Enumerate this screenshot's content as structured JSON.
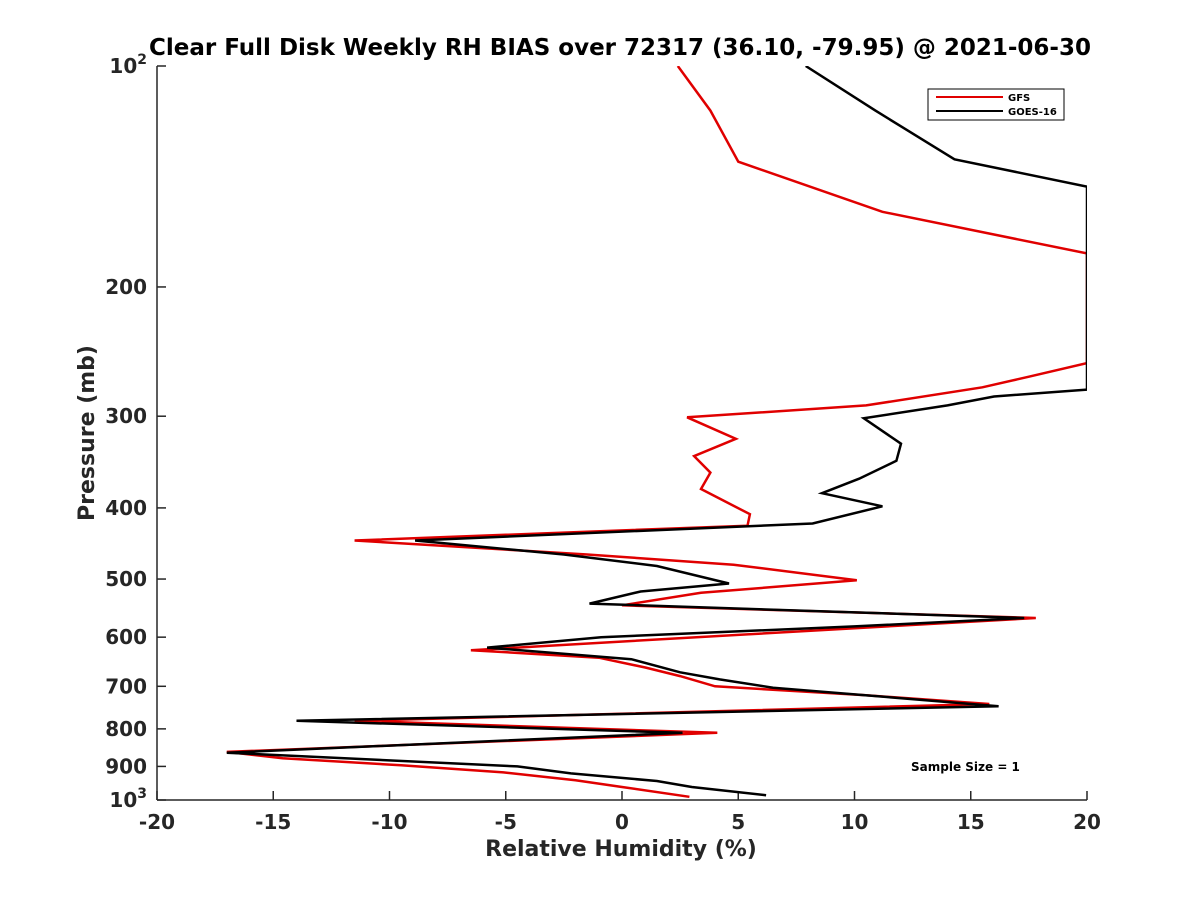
{
  "chart_data": {
    "type": "line",
    "title": "Clear Full Disk Weekly RH BIAS over 72317 (36.10, -79.95) @ 2021-06-30",
    "xlabel": "Relative Humidity (%)",
    "ylabel": "Pressure (mb)",
    "xlim": [
      -20,
      20
    ],
    "ylim": [
      100,
      1000
    ],
    "yscale": "log",
    "y_reversed": true,
    "xticks": [
      "-20",
      "-15",
      "-10",
      "-5",
      "0",
      "5",
      "10",
      "15",
      "20"
    ],
    "yticks": [
      {
        "value": 100,
        "base": "10",
        "exp": "2"
      },
      {
        "value": 200,
        "label": "200"
      },
      {
        "value": 300,
        "label": "300"
      },
      {
        "value": 400,
        "label": "400"
      },
      {
        "value": 500,
        "label": "500"
      },
      {
        "value": 600,
        "label": "600"
      },
      {
        "value": 700,
        "label": "700"
      },
      {
        "value": 800,
        "label": "800"
      },
      {
        "value": 900,
        "label": "900"
      },
      {
        "value": 1000,
        "base": "10",
        "exp": "3"
      }
    ],
    "legend_position": "top-right",
    "grid": false,
    "annotation": "Sample Size = 1",
    "series": [
      {
        "name": "GFS",
        "color": "#e00000",
        "points": [
          [
            2.4,
            100
          ],
          [
            3.8,
            115
          ],
          [
            5.0,
            135
          ],
          [
            11.2,
            158
          ],
          [
            20.0,
            180
          ],
          [
            20.0,
            254
          ],
          [
            17.5,
            265
          ],
          [
            15.5,
            274
          ],
          [
            10.5,
            290
          ],
          [
            2.8,
            301
          ],
          [
            4.9,
            322
          ],
          [
            3.1,
            340
          ],
          [
            3.8,
            358
          ],
          [
            3.4,
            377
          ],
          [
            5.5,
            408
          ],
          [
            5.4,
            423
          ],
          [
            -11.5,
            443
          ],
          [
            -1.5,
            463
          ],
          [
            4.8,
            478
          ],
          [
            10.1,
            502
          ],
          [
            3.4,
            522
          ],
          [
            0.0,
            543
          ],
          [
            17.8,
            565
          ],
          [
            8.5,
            587
          ],
          [
            -6.5,
            625
          ],
          [
            -1.0,
            640
          ],
          [
            1.0,
            660
          ],
          [
            2.5,
            678
          ],
          [
            4.0,
            700
          ],
          [
            10.5,
            720
          ],
          [
            15.8,
            740
          ],
          [
            -11.5,
            780
          ],
          [
            4.1,
            810
          ],
          [
            -17.0,
            860
          ],
          [
            -14.6,
            877
          ],
          [
            -9.5,
            897
          ],
          [
            -5.1,
            917
          ],
          [
            -2.0,
            940
          ],
          [
            0.0,
            960
          ],
          [
            2.9,
            990
          ]
        ]
      },
      {
        "name": "GOES-16",
        "color": "#000000",
        "points": [
          [
            7.9,
            100
          ],
          [
            10.9,
            115
          ],
          [
            14.3,
            134
          ],
          [
            20.0,
            146
          ],
          [
            20.0,
            276
          ],
          [
            16.0,
            282
          ],
          [
            14.0,
            290
          ],
          [
            10.4,
            302
          ],
          [
            12.0,
            327
          ],
          [
            11.8,
            345
          ],
          [
            10.2,
            365
          ],
          [
            8.6,
            382
          ],
          [
            11.2,
            398
          ],
          [
            8.2,
            420
          ],
          [
            -8.9,
            443
          ],
          [
            -2.5,
            463
          ],
          [
            1.5,
            480
          ],
          [
            4.6,
            507
          ],
          [
            0.8,
            520
          ],
          [
            -1.4,
            540
          ],
          [
            17.3,
            565
          ],
          [
            10.0,
            580
          ],
          [
            -0.9,
            600
          ],
          [
            -5.8,
            620
          ],
          [
            0.4,
            643
          ],
          [
            2.5,
            670
          ],
          [
            4.2,
            685
          ],
          [
            6.5,
            703
          ],
          [
            16.2,
            745
          ],
          [
            -14.0,
            780
          ],
          [
            2.6,
            810
          ],
          [
            -17.0,
            862
          ],
          [
            -4.5,
            900
          ],
          [
            -2.2,
            920
          ],
          [
            1.5,
            942
          ],
          [
            3.0,
            960
          ],
          [
            6.2,
            985
          ]
        ]
      }
    ]
  }
}
